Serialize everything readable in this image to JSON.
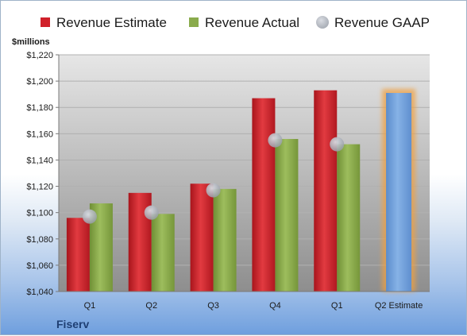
{
  "chart_data": {
    "type": "bar",
    "unit_label": "$millions",
    "brand": "Fiserv",
    "categories": [
      "Q1",
      "Q2",
      "Q3",
      "Q4",
      "Q1",
      "Q2 Estimate"
    ],
    "ylim": [
      1040,
      1220
    ],
    "yticks": [
      "$1,040",
      "$1,060",
      "$1,080",
      "$1,100",
      "$1,120",
      "$1,140",
      "$1,160",
      "$1,180",
      "$1,200",
      "$1,220"
    ],
    "grid": true,
    "legend_position": "top",
    "series": [
      {
        "name": "Revenue Estimate",
        "type": "bar",
        "color": "#d0202a",
        "values": [
          1096,
          1115,
          1122,
          1187,
          1193,
          null
        ]
      },
      {
        "name": "Revenue Actual",
        "type": "bar",
        "color": "#8aab4c",
        "values": [
          1107,
          1099,
          1118,
          1156,
          1152,
          null
        ]
      },
      {
        "name": "Revenue GAAP",
        "type": "marker",
        "color": "#b7bcc5",
        "values": [
          1097,
          1100,
          1117,
          1155,
          1152,
          null
        ]
      }
    ],
    "estimate": {
      "category_index": 5,
      "value": 1191,
      "color": "#6f9fd8",
      "glow": "#f0a040"
    }
  }
}
